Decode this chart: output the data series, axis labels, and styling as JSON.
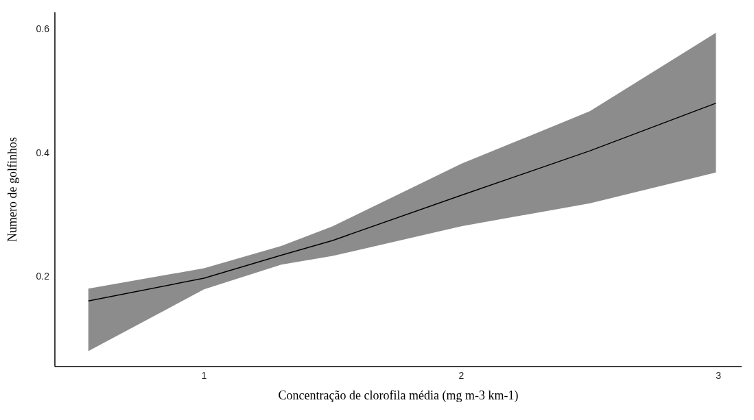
{
  "chart_data": {
    "type": "line",
    "xlabel": "Concentração de clorofila média (mg m-3 km-1)",
    "ylabel": "Numero de golfinhos",
    "xlim": [
      0.42,
      3.09
    ],
    "ylim": [
      0.054,
      0.627
    ],
    "xticks": [
      1,
      2,
      3
    ],
    "yticks": [
      0.2,
      0.4,
      0.6
    ],
    "grid": false,
    "legend": false,
    "marker": "none",
    "line_style": "solid",
    "series": [
      {
        "color": "#000000",
        "x": [
          0.55,
          1,
          1.3,
          1.5,
          2,
          2.5,
          2.99
        ],
        "values": [
          0.16,
          0.197,
          0.234,
          0.258,
          0.331,
          0.403,
          0.48
        ],
        "lower": [
          0.079,
          0.179,
          0.219,
          0.233,
          0.281,
          0.318,
          0.368
        ],
        "upper": [
          0.18,
          0.213,
          0.249,
          0.281,
          0.382,
          0.467,
          0.594
        ]
      }
    ]
  }
}
